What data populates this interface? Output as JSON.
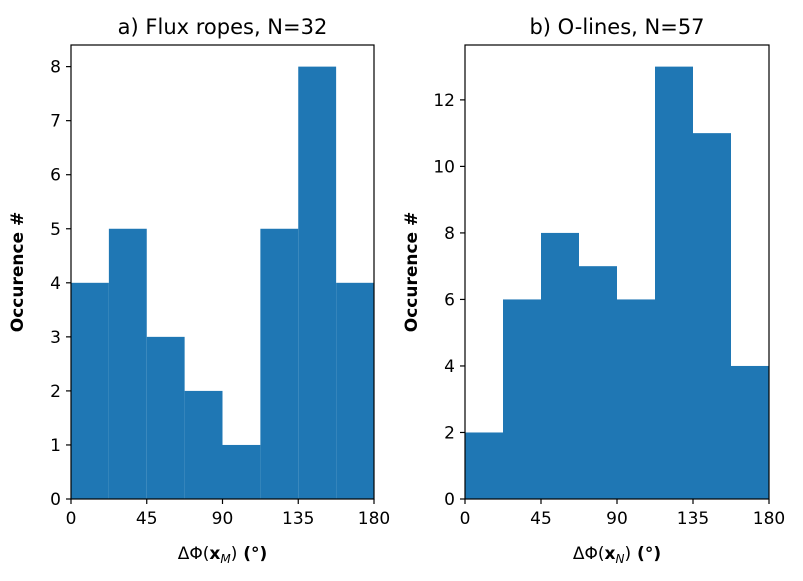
{
  "chart_data": [
    {
      "type": "bar",
      "title": "a) Flux ropes, N=32",
      "ylabel": "Occurence #",
      "xlabel": {
        "prefix": "ΔΦ(",
        "vec": "x",
        "sub": "M",
        "suffix": ")",
        "unit": " (°)"
      },
      "bin_edges": [
        0,
        22.5,
        45,
        67.5,
        90,
        112.5,
        135,
        157.5,
        180
      ],
      "values": [
        4,
        5,
        3,
        2,
        1,
        5,
        8,
        4
      ],
      "xlim": [
        0,
        180
      ],
      "ylim": [
        0,
        8.4
      ],
      "xticks": [
        0,
        45,
        90,
        135,
        180
      ],
      "yticks": [
        0,
        1,
        2,
        3,
        4,
        5,
        6,
        7,
        8
      ],
      "color": "#1f77b4",
      "grid": false
    },
    {
      "type": "bar",
      "title": "b) O-lines, N=57",
      "ylabel": "Occurence #",
      "xlabel": {
        "prefix": "ΔΦ(",
        "vec": "x",
        "sub": "N",
        "suffix": ")",
        "unit": " (°)"
      },
      "bin_edges": [
        0,
        22.5,
        45,
        67.5,
        90,
        112.5,
        135,
        157.5,
        180
      ],
      "values": [
        2,
        6,
        8,
        7,
        6,
        13,
        11,
        4
      ],
      "xlim": [
        0,
        180
      ],
      "ylim": [
        0,
        13.65
      ],
      "xticks": [
        0,
        45,
        90,
        135,
        180
      ],
      "yticks": [
        0,
        2,
        4,
        6,
        8,
        10,
        12
      ],
      "color": "#1f77b4",
      "grid": false
    }
  ]
}
